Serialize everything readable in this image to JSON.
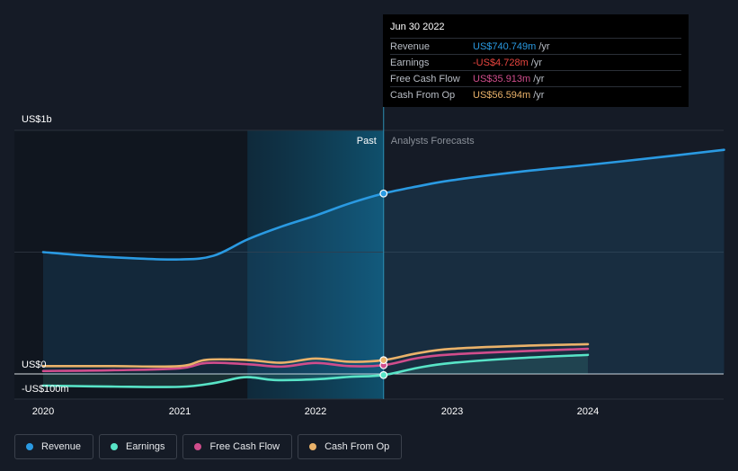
{
  "chart_data": {
    "type": "line",
    "x_ticks": [
      "2020",
      "2021",
      "2022",
      "2023",
      "2024"
    ],
    "y_labels": {
      "top": "US$1b",
      "zero": "US$0",
      "bottom": "-US$100m"
    },
    "ylim": [
      -100,
      1000
    ],
    "divider_label_left": "Past",
    "divider_label_right": "Analysts Forecasts",
    "grid": true,
    "legend_position": "bottom-left",
    "series": [
      {
        "name": "Revenue",
        "color": "#2a9ae2",
        "points": [
          [
            2020.0,
            500
          ],
          [
            2020.33,
            485
          ],
          [
            2020.66,
            475
          ],
          [
            2021.0,
            470
          ],
          [
            2021.25,
            485
          ],
          [
            2021.5,
            552
          ],
          [
            2021.75,
            605
          ],
          [
            2022.0,
            650
          ],
          [
            2022.25,
            700
          ],
          [
            2022.5,
            740.749
          ],
          [
            2022.75,
            770
          ],
          [
            2023.0,
            795
          ],
          [
            2023.5,
            830
          ],
          [
            2024.0,
            858
          ],
          [
            2024.5,
            888
          ],
          [
            2025.0,
            920
          ]
        ],
        "area": true
      },
      {
        "name": "Earnings",
        "color": "#58e4c7",
        "points": [
          [
            2020.0,
            -48
          ],
          [
            2020.5,
            -52
          ],
          [
            2021.0,
            -53
          ],
          [
            2021.25,
            -38
          ],
          [
            2021.45,
            -15
          ],
          [
            2021.55,
            -15
          ],
          [
            2021.7,
            -25
          ],
          [
            2022.0,
            -22
          ],
          [
            2022.25,
            -12
          ],
          [
            2022.5,
            -4.728
          ],
          [
            2022.75,
            25
          ],
          [
            2023.0,
            45
          ],
          [
            2023.5,
            65
          ],
          [
            2024.0,
            78
          ]
        ],
        "area": true
      },
      {
        "name": "Free Cash Flow",
        "color": "#d04d8c",
        "points": [
          [
            2020.0,
            12
          ],
          [
            2020.5,
            15
          ],
          [
            2021.0,
            23
          ],
          [
            2021.2,
            45
          ],
          [
            2021.5,
            40
          ],
          [
            2021.75,
            30
          ],
          [
            2022.0,
            45
          ],
          [
            2022.25,
            32
          ],
          [
            2022.5,
            35.913
          ],
          [
            2022.75,
            65
          ],
          [
            2023.0,
            80
          ],
          [
            2023.5,
            93
          ],
          [
            2024.0,
            103
          ]
        ],
        "area": false
      },
      {
        "name": "Cash From Op",
        "color": "#eab26a",
        "points": [
          [
            2020.0,
            32
          ],
          [
            2020.5,
            32
          ],
          [
            2021.0,
            32
          ],
          [
            2021.2,
            58
          ],
          [
            2021.5,
            57
          ],
          [
            2021.75,
            46
          ],
          [
            2022.0,
            63
          ],
          [
            2022.25,
            50
          ],
          [
            2022.5,
            56.594
          ],
          [
            2022.75,
            85
          ],
          [
            2023.0,
            103
          ],
          [
            2023.5,
            115
          ],
          [
            2024.0,
            122
          ]
        ],
        "area": false
      }
    ],
    "highlight_x": 2022.5
  },
  "tooltip": {
    "date": "Jun 30 2022",
    "unit": "/yr",
    "rows": [
      {
        "label": "Revenue",
        "value": "US$740.749m",
        "color": "#2a9ae2"
      },
      {
        "label": "Earnings",
        "value": "-US$4.728m",
        "color": "#e8453f"
      },
      {
        "label": "Free Cash Flow",
        "value": "US$35.913m",
        "color": "#d04d8c"
      },
      {
        "label": "Cash From Op",
        "value": "US$56.594m",
        "color": "#eab26a"
      }
    ]
  },
  "legend": [
    {
      "label": "Revenue",
      "color": "#2a9ae2"
    },
    {
      "label": "Earnings",
      "color": "#58e4c7"
    },
    {
      "label": "Free Cash Flow",
      "color": "#d04d8c"
    },
    {
      "label": "Cash From Op",
      "color": "#eab26a"
    }
  ]
}
